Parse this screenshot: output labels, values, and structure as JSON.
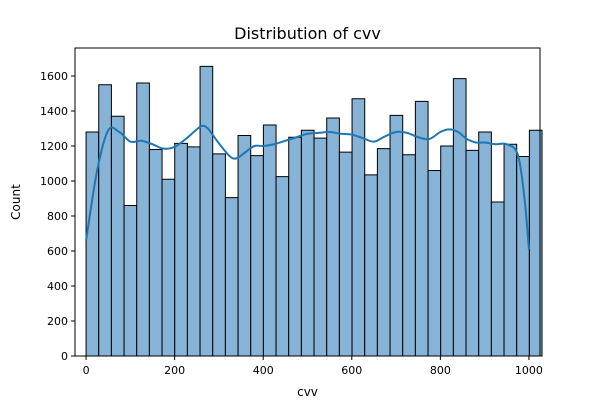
{
  "chart_data": {
    "type": "bar",
    "title": "Distribution of cvv",
    "xlabel": "cvv",
    "ylabel": "Count",
    "xlim": [
      -25,
      1025
    ],
    "ylim": [
      0,
      1760
    ],
    "x_ticks": [
      0,
      200,
      400,
      600,
      800,
      1000
    ],
    "y_ticks": [
      0,
      200,
      400,
      600,
      800,
      1000,
      1200,
      1400,
      1600
    ],
    "grid": false,
    "bins": {
      "start": 0,
      "width": 28.6,
      "counts": [
        1280,
        1550,
        1370,
        860,
        1560,
        1180,
        1010,
        1215,
        1195,
        1655,
        1155,
        905,
        1260,
        1145,
        1320,
        1025,
        1250,
        1290,
        1245,
        1360,
        1165,
        1470,
        1035,
        1185,
        1375,
        1150,
        1455,
        1060,
        1200,
        1585,
        1175,
        1280,
        880,
        1210,
        1140,
        1290
      ]
    },
    "kde": {
      "x": [
        0,
        25,
        50,
        75,
        100,
        125,
        150,
        175,
        200,
        225,
        250,
        262,
        275,
        300,
        325,
        340,
        360,
        380,
        400,
        425,
        450,
        475,
        500,
        525,
        550,
        575,
        600,
        625,
        650,
        675,
        700,
        725,
        750,
        775,
        800,
        820,
        840,
        860,
        880,
        900,
        925,
        950,
        975,
        990,
        1000
      ],
      "y": [
        660,
        1060,
        1290,
        1280,
        1225,
        1230,
        1210,
        1185,
        1195,
        1240,
        1295,
        1315,
        1300,
        1215,
        1140,
        1130,
        1165,
        1200,
        1200,
        1210,
        1230,
        1250,
        1270,
        1275,
        1280,
        1270,
        1265,
        1245,
        1225,
        1255,
        1280,
        1275,
        1250,
        1240,
        1280,
        1295,
        1280,
        1240,
        1220,
        1220,
        1210,
        1210,
        1150,
        900,
        610
      ]
    },
    "colors": {
      "bar_fill": "#86b3d6",
      "bar_edge": "#000000",
      "kde_line": "#1f77b4"
    }
  }
}
